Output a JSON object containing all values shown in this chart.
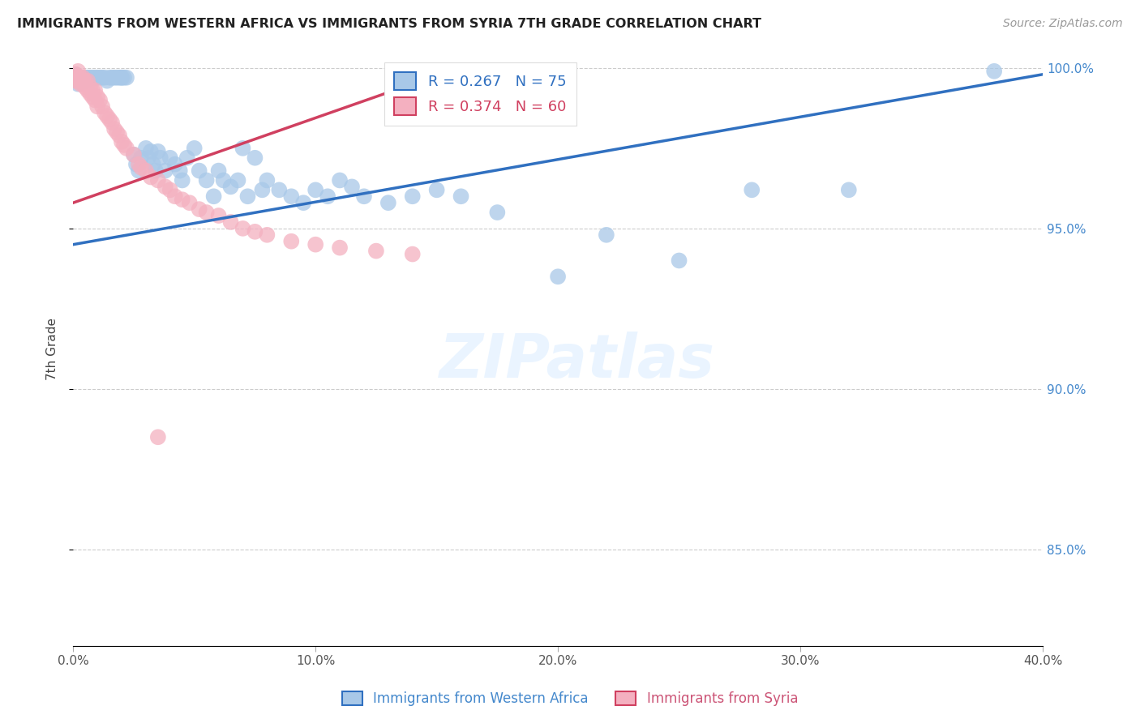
{
  "title": "IMMIGRANTS FROM WESTERN AFRICA VS IMMIGRANTS FROM SYRIA 7TH GRADE CORRELATION CHART",
  "source": "Source: ZipAtlas.com",
  "ylabel": "7th Grade",
  "xlim": [
    0.0,
    0.4
  ],
  "ylim": [
    0.82,
    1.005
  ],
  "xtick_labels": [
    "0.0%",
    "10.0%",
    "20.0%",
    "30.0%",
    "40.0%"
  ],
  "xtick_vals": [
    0.0,
    0.1,
    0.2,
    0.3,
    0.4
  ],
  "ytick_labels": [
    "85.0%",
    "90.0%",
    "95.0%",
    "100.0%"
  ],
  "ytick_vals": [
    0.85,
    0.9,
    0.95,
    1.0
  ],
  "blue_R": 0.267,
  "blue_N": 75,
  "pink_R": 0.374,
  "pink_N": 60,
  "blue_color": "#a8c8e8",
  "pink_color": "#f4b0c0",
  "blue_line_color": "#3070c0",
  "pink_line_color": "#d04060",
  "legend_blue_fill": "#a8c8e8",
  "legend_pink_fill": "#f4b0c0",
  "watermark": "ZIPatlas",
  "blue_line_x0": 0.0,
  "blue_line_y0": 0.945,
  "blue_line_x1": 0.4,
  "blue_line_y1": 0.998,
  "pink_line_x0": 0.0,
  "pink_line_y0": 0.958,
  "pink_line_x1": 0.155,
  "pink_line_y1": 0.999,
  "blue_scatter_x": [
    0.001,
    0.002,
    0.003,
    0.003,
    0.004,
    0.004,
    0.005,
    0.005,
    0.006,
    0.007,
    0.008,
    0.009,
    0.01,
    0.011,
    0.012,
    0.013,
    0.014,
    0.015,
    0.016,
    0.017,
    0.018,
    0.019,
    0.02,
    0.02,
    0.021,
    0.022,
    0.025,
    0.026,
    0.027,
    0.028,
    0.03,
    0.031,
    0.032,
    0.033,
    0.034,
    0.035,
    0.036,
    0.038,
    0.04,
    0.042,
    0.044,
    0.045,
    0.047,
    0.05,
    0.052,
    0.055,
    0.058,
    0.06,
    0.062,
    0.065,
    0.068,
    0.07,
    0.072,
    0.075,
    0.078,
    0.08,
    0.085,
    0.09,
    0.095,
    0.1,
    0.105,
    0.11,
    0.115,
    0.12,
    0.13,
    0.14,
    0.15,
    0.16,
    0.175,
    0.2,
    0.22,
    0.25,
    0.28,
    0.32,
    0.38
  ],
  "blue_scatter_y": [
    0.998,
    0.995,
    0.997,
    0.996,
    0.996,
    0.996,
    0.997,
    0.996,
    0.997,
    0.997,
    0.997,
    0.997,
    0.997,
    0.997,
    0.997,
    0.997,
    0.996,
    0.997,
    0.997,
    0.997,
    0.997,
    0.997,
    0.997,
    0.997,
    0.997,
    0.997,
    0.973,
    0.97,
    0.968,
    0.972,
    0.975,
    0.972,
    0.974,
    0.97,
    0.968,
    0.974,
    0.972,
    0.968,
    0.972,
    0.97,
    0.968,
    0.965,
    0.972,
    0.975,
    0.968,
    0.965,
    0.96,
    0.968,
    0.965,
    0.963,
    0.965,
    0.975,
    0.96,
    0.972,
    0.962,
    0.965,
    0.962,
    0.96,
    0.958,
    0.962,
    0.96,
    0.965,
    0.963,
    0.96,
    0.958,
    0.96,
    0.962,
    0.96,
    0.955,
    0.935,
    0.948,
    0.94,
    0.962,
    0.962,
    0.999
  ],
  "pink_scatter_x": [
    0.001,
    0.001,
    0.001,
    0.002,
    0.002,
    0.003,
    0.003,
    0.003,
    0.004,
    0.004,
    0.004,
    0.005,
    0.005,
    0.005,
    0.006,
    0.006,
    0.007,
    0.007,
    0.008,
    0.008,
    0.009,
    0.009,
    0.01,
    0.01,
    0.011,
    0.012,
    0.013,
    0.014,
    0.015,
    0.016,
    0.017,
    0.018,
    0.019,
    0.02,
    0.021,
    0.022,
    0.025,
    0.027,
    0.028,
    0.03,
    0.032,
    0.035,
    0.038,
    0.04,
    0.042,
    0.045,
    0.048,
    0.052,
    0.055,
    0.06,
    0.065,
    0.07,
    0.075,
    0.08,
    0.09,
    0.1,
    0.11,
    0.125,
    0.14,
    0.035
  ],
  "pink_scatter_y": [
    0.998,
    0.997,
    0.996,
    0.999,
    0.997,
    0.997,
    0.996,
    0.995,
    0.997,
    0.996,
    0.995,
    0.996,
    0.995,
    0.994,
    0.996,
    0.993,
    0.994,
    0.992,
    0.993,
    0.991,
    0.993,
    0.99,
    0.991,
    0.988,
    0.99,
    0.988,
    0.986,
    0.985,
    0.984,
    0.983,
    0.981,
    0.98,
    0.979,
    0.977,
    0.976,
    0.975,
    0.973,
    0.97,
    0.969,
    0.968,
    0.966,
    0.965,
    0.963,
    0.962,
    0.96,
    0.959,
    0.958,
    0.956,
    0.955,
    0.954,
    0.952,
    0.95,
    0.949,
    0.948,
    0.946,
    0.945,
    0.944,
    0.943,
    0.942,
    0.885
  ]
}
